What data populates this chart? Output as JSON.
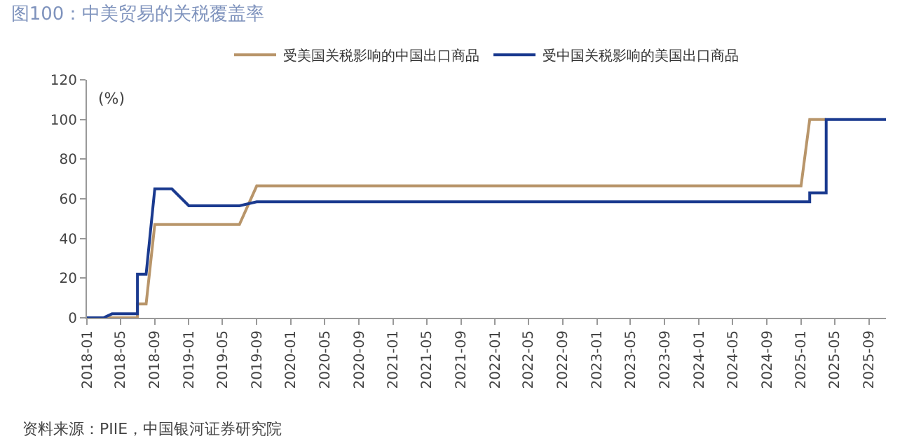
{
  "chart_data": {
    "type": "line",
    "title": "图100：中美贸易的关税覆盖率",
    "ylabel": "(%)",
    "annotations": [
      "资料来源：PIIE，中国银河证券研究院"
    ],
    "series": [
      {
        "name": "受美国关税影响的中国出口商品",
        "color": "#b8956a",
        "x": [
          "2018-01",
          "2018-07",
          "2018-07",
          "2018-08",
          "2018-09",
          "2019-07",
          "2019-09",
          "2025-01",
          "2025-02",
          "2025-04"
        ],
        "values": [
          0,
          0,
          7,
          7,
          47,
          47,
          66.5,
          66.5,
          100,
          100
        ]
      },
      {
        "name": "受中国关税影响的美国出口商品",
        "color": "#1a3a8f",
        "x": [
          "2018-01",
          "2018-03",
          "2018-04",
          "2018-07",
          "2018-07",
          "2018-08",
          "2018-09",
          "2018-11",
          "2019-01",
          "2019-07",
          "2019-09",
          "2025-02",
          "2025-02",
          "2025-04",
          "2025-04",
          "2025-11"
        ],
        "values": [
          0,
          0,
          2,
          2,
          22,
          22,
          65,
          65,
          56.5,
          56.5,
          58.5,
          58.5,
          63,
          63,
          100,
          100
        ]
      }
    ],
    "xlim": [
      "2018-01",
      "2025-11"
    ],
    "xticks": [
      "2018-01",
      "2018-05",
      "2018-09",
      "2019-01",
      "2019-05",
      "2019-09",
      "2020-01",
      "2020-05",
      "2020-09",
      "2021-01",
      "2021-05",
      "2021-09",
      "2022-01",
      "2022-05",
      "2022-09",
      "2023-01",
      "2023-05",
      "2023-09",
      "2024-01",
      "2024-05",
      "2024-09",
      "2025-01",
      "2025-05",
      "2025-09"
    ],
    "ylim": [
      0,
      120
    ],
    "yticks": [
      0,
      20,
      40,
      60,
      80,
      100,
      120
    ],
    "legend": "top",
    "marker": "none",
    "line_style": "solid"
  }
}
